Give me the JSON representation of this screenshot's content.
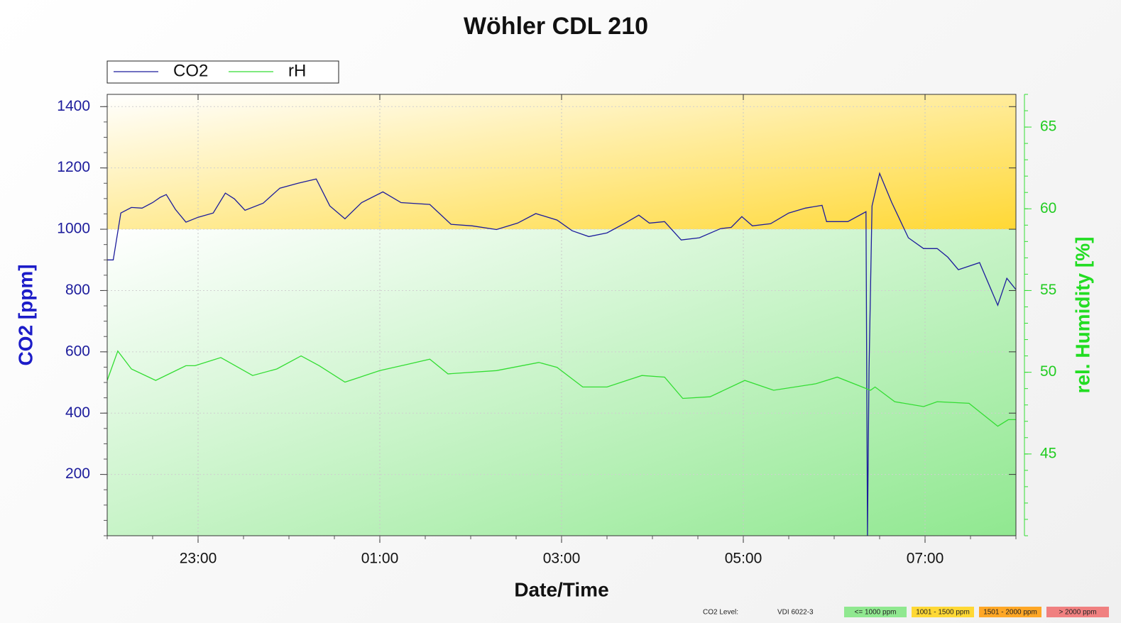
{
  "chart_data": {
    "type": "line",
    "title": "Wöhler CDL 210",
    "xlabel": "Date/Time",
    "ylabel": "CO2 [ppm]",
    "y2label": "rel. Humidity [%]",
    "xlim": [
      "22:00",
      "08:00"
    ],
    "xticks": [
      "23:00",
      "01:00",
      "03:00",
      "05:00",
      "07:00"
    ],
    "ylim": [
      0,
      1440
    ],
    "yticks": [
      200,
      400,
      600,
      800,
      1000,
      1200,
      1400
    ],
    "y2lim": [
      40,
      67
    ],
    "y2ticks": [
      45,
      50,
      55,
      60,
      65
    ],
    "grid": true,
    "legend": "top-left",
    "series": [
      {
        "name": "CO2",
        "color": "#1c1c9c",
        "axis": "y",
        "x": [
          "22:00",
          "22:04",
          "22:09",
          "22:16",
          "22:23",
          "22:30",
          "22:35",
          "22:39",
          "22:45",
          "22:52",
          "23:00",
          "23:10",
          "23:18",
          "23:24",
          "23:31",
          "23:43",
          "23:54",
          "00:06",
          "00:18",
          "00:27",
          "00:37",
          "00:48",
          "01:02",
          "01:14",
          "01:33",
          "01:47",
          "02:01",
          "02:17",
          "02:31",
          "02:43",
          "02:57",
          "03:07",
          "03:18",
          "03:30",
          "03:42",
          "03:51",
          "03:58",
          "04:08",
          "04:19",
          "04:31",
          "04:45",
          "04:52",
          "04:59",
          "05:06",
          "05:18",
          "05:30",
          "05:41",
          "05:52",
          "05:55",
          "06:09",
          "06:21",
          "06:22",
          "06:23",
          "06:25",
          "06:30",
          "06:38",
          "06:49",
          "06:59",
          "07:08",
          "07:15",
          "07:22",
          "07:36",
          "07:48",
          "07:54",
          "08:00"
        ],
        "values": [
          900,
          900,
          1053,
          1071,
          1069,
          1087,
          1104,
          1113,
          1065,
          1023,
          1039,
          1053,
          1118,
          1099,
          1062,
          1085,
          1134,
          1150,
          1164,
          1076,
          1034,
          1087,
          1122,
          1087,
          1081,
          1016,
          1011,
          999,
          1020,
          1051,
          1030,
          995,
          976,
          988,
          1020,
          1046,
          1020,
          1025,
          965,
          972,
          1002,
          1006,
          1041,
          1011,
          1018,
          1053,
          1069,
          1078,
          1025,
          1025,
          1057,
          0,
          543,
          1076,
          1182,
          1087,
          972,
          937,
          937,
          909,
          868,
          891,
          752,
          840,
          803
        ]
      },
      {
        "name": "rH",
        "color": "#33dd33",
        "axis": "y2",
        "x": [
          "22:00",
          "22:07",
          "22:16",
          "22:32",
          "22:52",
          "22:58",
          "23:15",
          "23:36",
          "23:52",
          "00:08",
          "00:20",
          "00:37",
          "01:00",
          "01:19",
          "01:33",
          "01:45",
          "02:17",
          "02:45",
          "02:57",
          "03:14",
          "03:30",
          "03:53",
          "04:08",
          "04:20",
          "04:38",
          "05:01",
          "05:20",
          "05:48",
          "06:02",
          "06:24",
          "06:27",
          "06:40",
          "06:59",
          "07:08",
          "07:29",
          "07:48",
          "07:55",
          "08:00"
        ],
        "values": [
          49.5,
          51.3,
          50.2,
          49.5,
          50.4,
          50.4,
          50.9,
          49.8,
          50.2,
          51.0,
          50.4,
          49.4,
          50.1,
          50.5,
          50.8,
          49.9,
          50.1,
          50.6,
          50.3,
          49.1,
          49.1,
          49.8,
          49.7,
          48.4,
          48.5,
          49.5,
          48.9,
          49.3,
          49.7,
          48.9,
          49.1,
          48.2,
          47.9,
          48.2,
          48.1,
          46.7,
          47.1,
          47.1
        ]
      }
    ],
    "zones_title": "CO2 Level:",
    "zones_standard": "VDI 6022-3",
    "zones": [
      {
        "label": "<= 1000 ppm",
        "color": "#90e890",
        "max": 1000
      },
      {
        "label": "1001 - 1500 ppm",
        "color": "#ffd835",
        "max": 1500
      },
      {
        "label": "1501 - 2000 ppm",
        "color": "#ffa726",
        "max": 2000
      },
      {
        "label": "> 2000 ppm",
        "color": "#f08080"
      }
    ]
  }
}
